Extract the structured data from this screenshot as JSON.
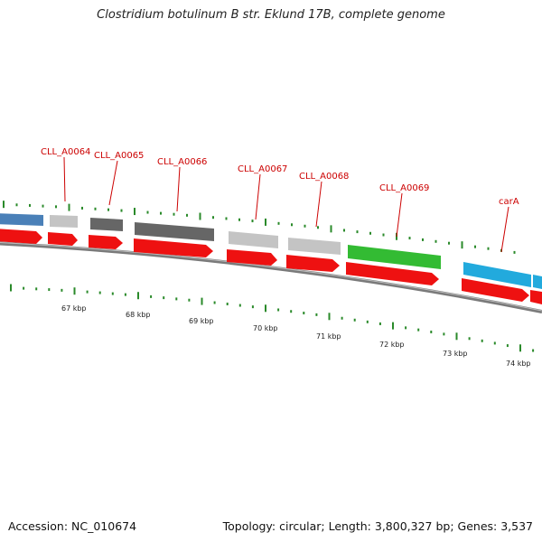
{
  "title": "Clostridium botulinum B str. Eklund 17B, complete genome",
  "footer": {
    "accession": "Accession: NC_010674",
    "stats": "Topology: circular; Length: 3,800,327 bp; Genes: 3,537"
  },
  "colors": {
    "label": "#cc0000",
    "tick": "#2a8a2a",
    "backbone": "#888888",
    "cds_red": "#ee1111",
    "blue_gene": "#4a80b8",
    "light_gray": "#c4c4c4",
    "dark_gray": "#666666",
    "green_gene": "#33bb33",
    "cyan_gene": "#22aadd"
  },
  "gene_labels": [
    "CLL_A0064",
    "CLL_A0065",
    "CLL_A0066",
    "CLL_A0067",
    "CLL_A0068",
    "CLL_A0069",
    "carA"
  ],
  "scale_labels": [
    "67 kbp",
    "68 kbp",
    "69 kbp",
    "70 kbp",
    "71 kbp",
    "72 kbp",
    "73 kbp",
    "74 kbp"
  ]
}
